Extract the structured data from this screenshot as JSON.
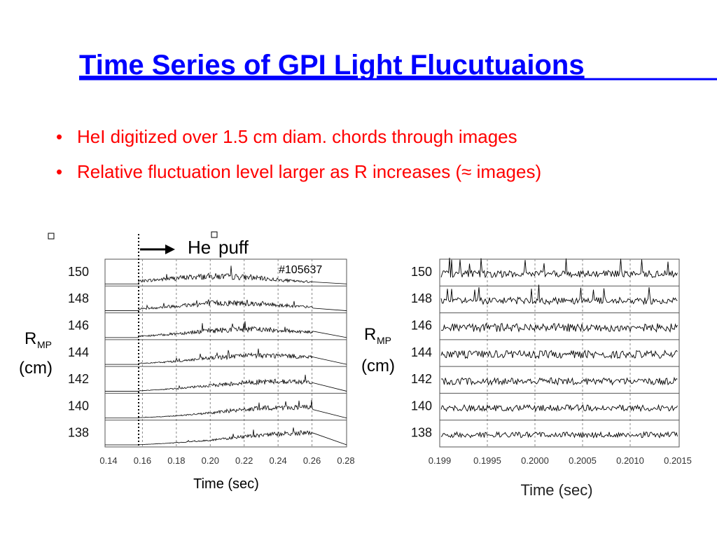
{
  "title": "Time Series of GPI Light Flucutuaions",
  "bullets": [
    "HeI digitized over 1.5 cm diam. chords through images",
    "Relative fluctuation level larger as R increases (≈ images)"
  ],
  "figures": [
    {
      "y_label": "R",
      "y_label_sub": "MP",
      "y_unit": "(cm)",
      "row_labels": [
        "150",
        "148",
        "146",
        "144",
        "142",
        "140",
        "138"
      ],
      "x_ticks": [
        "0.14",
        "0.16",
        "0.18",
        "0.20",
        "0.22",
        "0.24",
        "0.26",
        "0.28"
      ],
      "x_label": "Time (sec)",
      "annotation": "He",
      "annotation_2": "puff",
      "shot": "#105637"
    },
    {
      "y_label": "R",
      "y_label_sub": "MP",
      "y_unit": "(cm)",
      "row_labels": [
        "150",
        "148",
        "146",
        "144",
        "142",
        "140",
        "138"
      ],
      "x_ticks": [
        "0.199",
        "0.1995",
        "0.2000",
        "0.2005",
        "0.2010",
        "0.2015"
      ],
      "x_label": "Time (sec)"
    }
  ]
}
